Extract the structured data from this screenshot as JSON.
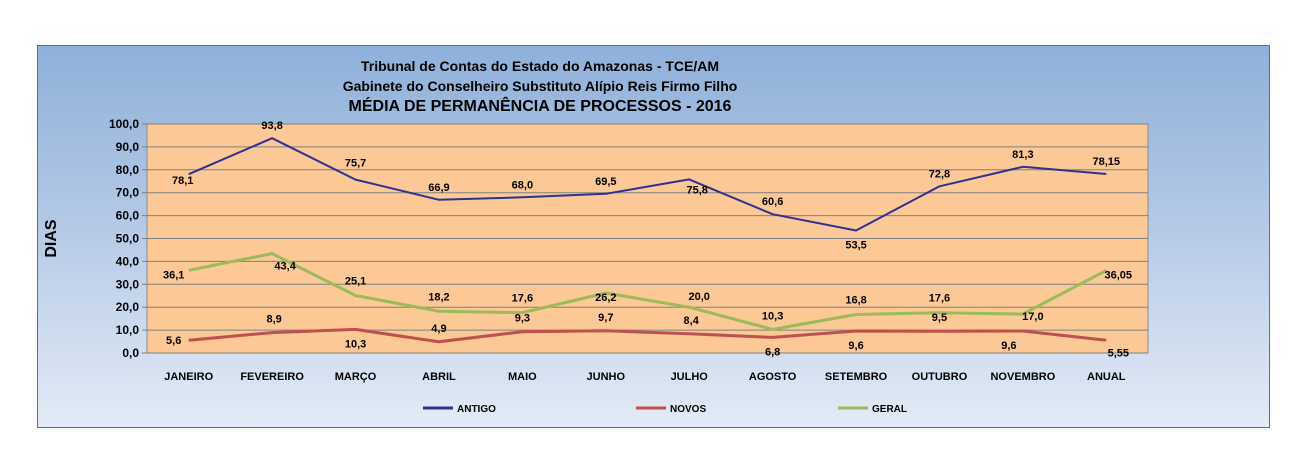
{
  "chart_data": {
    "type": "line",
    "title_lines": [
      "Tribunal de Contas do Estado do Amazonas - TCE/AM",
      "Gabinete do Conselheiro Substituto Alípio Reis Firmo Filho",
      "MÉDIA DE PERMANÊNCIA DE PROCESSOS - 2016"
    ],
    "ylabel": "DIAS",
    "xlabel": "",
    "ylim": [
      0,
      100
    ],
    "y_ticks": [
      "0,0",
      "10,0",
      "20,0",
      "30,0",
      "40,0",
      "50,0",
      "60,0",
      "70,0",
      "80,0",
      "90,0",
      "100,0"
    ],
    "categories": [
      "JANEIRO",
      "FEVEREIRO",
      "MARÇO",
      "ABRIL",
      "MAIO",
      "JUNHO",
      "JULHO",
      "AGOSTO",
      "SETEMBRO",
      "OUTUBRO",
      "NOVEMBRO",
      "ANUAL"
    ],
    "series": [
      {
        "name": "ANTIGO",
        "color": "#2e3192",
        "values": [
          78.1,
          93.8,
          75.7,
          66.9,
          68.0,
          69.5,
          75.8,
          60.6,
          53.5,
          72.8,
          81.3,
          78.15
        ],
        "labels": [
          "78,1",
          "93,8",
          "75,7",
          "66,9",
          "68,0",
          "69,5",
          "75,8",
          "60,6",
          "53,5",
          "72,8",
          "81,3",
          "78,15"
        ]
      },
      {
        "name": "NOVOS",
        "color": "#c0504d",
        "values": [
          5.6,
          8.9,
          10.3,
          4.9,
          9.3,
          9.7,
          8.4,
          6.8,
          9.6,
          9.5,
          9.6,
          5.55
        ],
        "labels": [
          "5,6",
          "8,9",
          "10,3",
          "4,9",
          "9,3",
          "9,7",
          "8,4",
          "6,8",
          "9,6",
          "9,5",
          "9,6",
          "5,55"
        ]
      },
      {
        "name": "GERAL",
        "color": "#9bbb59",
        "values": [
          36.1,
          43.4,
          25.1,
          18.2,
          17.6,
          26.2,
          20.0,
          10.3,
          16.8,
          17.6,
          17.0,
          36.05
        ],
        "labels": [
          "36,1",
          "43,4",
          "25,1",
          "18,2",
          "17,6",
          "26,2",
          "20,0",
          "10,3",
          "16,8",
          "17,6",
          "17,0",
          "36,05"
        ]
      }
    ],
    "grid": true,
    "legend_position": "bottom",
    "plot_background": "#fcc896"
  }
}
